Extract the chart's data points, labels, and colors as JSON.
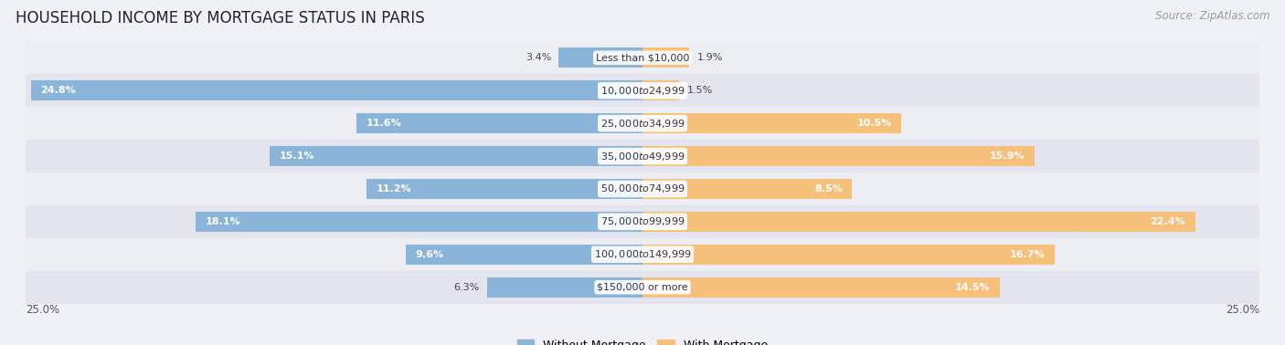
{
  "title": "HOUSEHOLD INCOME BY MORTGAGE STATUS IN PARIS",
  "source": "Source: ZipAtlas.com",
  "categories": [
    "Less than $10,000",
    "$10,000 to $24,999",
    "$25,000 to $34,999",
    "$35,000 to $49,999",
    "$50,000 to $74,999",
    "$75,000 to $99,999",
    "$100,000 to $149,999",
    "$150,000 or more"
  ],
  "without_mortgage": [
    3.4,
    24.8,
    11.6,
    15.1,
    11.2,
    18.1,
    9.6,
    6.3
  ],
  "with_mortgage": [
    1.9,
    1.5,
    10.5,
    15.9,
    8.5,
    22.4,
    16.7,
    14.5
  ],
  "color_without": "#8ab4d8",
  "color_with": "#f5c07a",
  "color_without_light": "#b8d4ea",
  "color_with_light": "#fad9a8",
  "row_bg_light": "#ededf4",
  "row_bg_dark": "#e4e4ee",
  "axis_label": "25.0%",
  "x_max": 25.0,
  "title_fontsize": 12,
  "source_fontsize": 8.5,
  "legend_fontsize": 9,
  "bar_label_fontsize": 8,
  "category_fontsize": 8,
  "axis_tick_fontsize": 8.5,
  "bar_height": 0.62,
  "fig_bg": "#f0f0f7"
}
